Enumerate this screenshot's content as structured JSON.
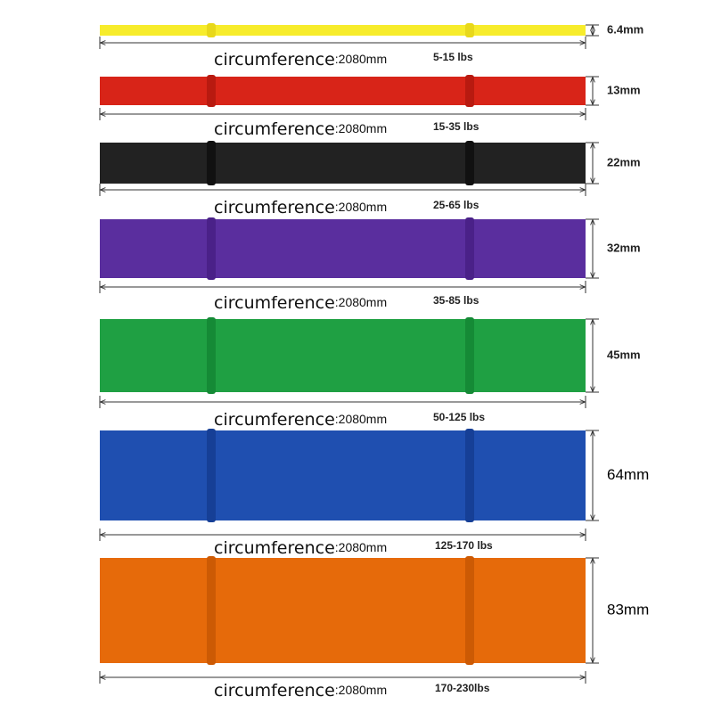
{
  "bands": [
    {
      "thickness": "6.4mm",
      "circumference_label": "circumference",
      "circumference_value": ":2080mm",
      "resistance": "5-15 lbs"
    },
    {
      "thickness": "13mm",
      "circumference_label": "circumference",
      "circumference_value": ":2080mm",
      "resistance": "15-35 lbs"
    },
    {
      "thickness": "22mm",
      "circumference_label": "circumference",
      "circumference_value": ":2080mm",
      "resistance": "25-65 lbs"
    },
    {
      "thickness": "32mm",
      "circumference_label": "circumference",
      "circumference_value": ":2080mm",
      "resistance": "35-85 lbs"
    },
    {
      "thickness": "45mm",
      "circumference_label": "circumference",
      "circumference_value": ":2080mm",
      "resistance": "50-125 lbs"
    },
    {
      "thickness": "64mm",
      "circumference_label": "circumference",
      "circumference_value": ":2080mm",
      "resistance": "125-170 lbs"
    },
    {
      "thickness": "83mm",
      "circumference_label": "circumference",
      "circumference_value": ":2080mm",
      "resistance": "170-230lbs"
    }
  ]
}
